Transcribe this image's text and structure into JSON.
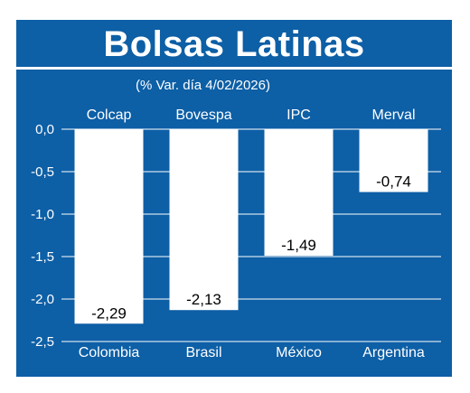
{
  "title": "Bolsas Latinas",
  "subtitle": "(% Var. día 4/02/2026)",
  "colors": {
    "background": "#0d5fa6",
    "bar": "#ffffff",
    "text": "#ffffff",
    "grid": "#ffffff",
    "label_text": "#000000"
  },
  "chart_data": {
    "type": "bar",
    "title": "Bolsas Latinas",
    "subtitle": "(% Var. día 4/02/2026)",
    "categories": [
      "Colombia",
      "Brasil",
      "México",
      "Argentina"
    ],
    "index_names": [
      "Colcap",
      "Bovespa",
      "IPC",
      "Merval"
    ],
    "values": [
      -2.29,
      -2.13,
      -1.49,
      -0.74
    ],
    "value_labels": [
      "-2,29",
      "-2,13",
      "-1,49",
      "-0,74"
    ],
    "ylim": [
      -2.5,
      0
    ],
    "yticks": [
      0,
      -0.5,
      -1,
      -1.5,
      -2,
      -2.5
    ],
    "ytick_labels": [
      "0,0",
      "-0,5",
      "-1,0",
      "-1,5",
      "-2,0",
      "-2,5"
    ],
    "grid": true,
    "xlabel": "",
    "ylabel": ""
  }
}
